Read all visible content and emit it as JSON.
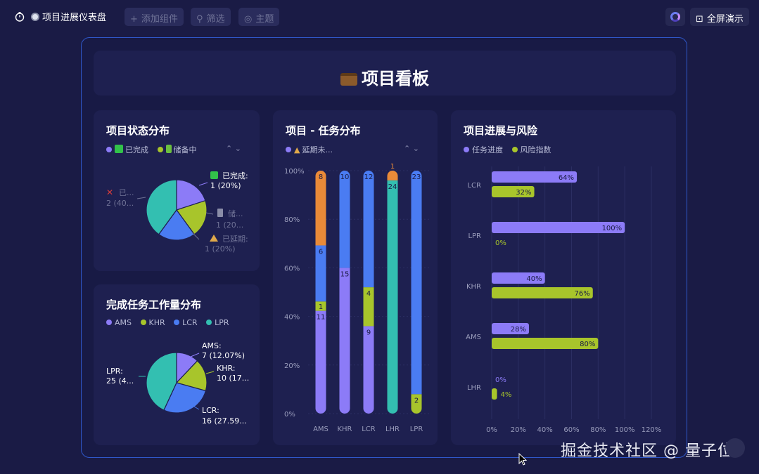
{
  "topbar": {
    "title": "项目进展仪表盘",
    "add_widget": "添加组件",
    "filter": "筛选",
    "theme": "主题",
    "fullscreen": "全屏演示"
  },
  "header": {
    "title": "项目看板"
  },
  "status_card": {
    "title": "项目状态分布",
    "legend": [
      "已完成",
      "储备中"
    ],
    "labels": [
      {
        "name": "已完成:",
        "value": "1 (20%)"
      },
      {
        "name": "储...",
        "value": "1 (20..."
      },
      {
        "name": "已延期:",
        "value": "1 (20%)"
      },
      {
        "name": "已...",
        "value": "2 (40..."
      }
    ]
  },
  "workload_card": {
    "title": "完成任务工作量分布",
    "legend": [
      "AMS",
      "KHR",
      "LCR",
      "LPR"
    ],
    "labels": [
      {
        "name": "AMS:",
        "value": "7 (12.07%)"
      },
      {
        "name": "KHR:",
        "value": "10 (17..."
      },
      {
        "name": "LCR:",
        "value": "16 (27.59..."
      },
      {
        "name": "LPR:",
        "value": "25 (4..."
      }
    ]
  },
  "task_card": {
    "title": "项目 - 任务分布",
    "legend": [
      "延期未..."
    ]
  },
  "progress_card": {
    "title": "项目进展与风险",
    "legend": [
      "任务进度",
      "风险指数"
    ]
  },
  "colors": {
    "purple": "#8c7bf7",
    "green": "#a8c52b",
    "blue": "#4a7cf2",
    "teal": "#33bfb1",
    "orange": "#e98a38"
  },
  "chart_data": [
    {
      "type": "pie",
      "title": "项目状态分布",
      "series": [
        {
          "name": "已完成",
          "value": 1,
          "color": "#8c7bf7"
        },
        {
          "name": "储...",
          "value": 1,
          "color": "#a8c52b"
        },
        {
          "name": "已延期",
          "value": 1,
          "color": "#4a7cf2"
        },
        {
          "name": "已...",
          "value": 2,
          "color": "#33bfb1"
        }
      ]
    },
    {
      "type": "pie",
      "title": "完成任务工作量分布",
      "series": [
        {
          "name": "AMS",
          "value": 7,
          "color": "#8c7bf7"
        },
        {
          "name": "KHR",
          "value": 10,
          "color": "#a8c52b"
        },
        {
          "name": "LCR",
          "value": 16,
          "color": "#4a7cf2"
        },
        {
          "name": "LPR",
          "value": 25,
          "color": "#33bfb1"
        }
      ]
    },
    {
      "type": "bar",
      "title": "项目 - 任务分布",
      "stacked": "percent",
      "categories": [
        "AMS",
        "KHR",
        "LCR",
        "LHR",
        "LPR"
      ],
      "yticks": [
        "0%",
        "20%",
        "40%",
        "60%",
        "80%",
        "100%"
      ],
      "segments": [
        {
          "category": "AMS",
          "values": [
            {
              "value": 11,
              "color": "#8c7bf7",
              "label": "11"
            },
            {
              "value": 1,
              "color": "#a8c52b",
              "label": "1"
            },
            {
              "value": 6,
              "color": "#4a7cf2",
              "label": "6"
            },
            {
              "value": 8,
              "color": "#e98a38",
              "label": "8"
            }
          ]
        },
        {
          "category": "KHR",
          "values": [
            {
              "value": 15,
              "color": "#8c7bf7",
              "label": "15"
            },
            {
              "value": 10,
              "color": "#4a7cf2",
              "label": "10"
            }
          ]
        },
        {
          "category": "LCR",
          "values": [
            {
              "value": 9,
              "color": "#8c7bf7",
              "label": "9"
            },
            {
              "value": 4,
              "color": "#a8c52b",
              "label": "4"
            },
            {
              "value": 12,
              "color": "#4a7cf2",
              "label": "12"
            }
          ]
        },
        {
          "category": "LHR",
          "values": [
            {
              "value": 24,
              "color": "#33bfb1",
              "label": "24"
            },
            {
              "value": 1,
              "color": "#e98a38",
              "label": "1"
            }
          ]
        },
        {
          "category": "LPR",
          "values": [
            {
              "value": 2,
              "color": "#a8c52b",
              "label": "2"
            },
            {
              "value": 23,
              "color": "#4a7cf2",
              "label": "23"
            }
          ]
        }
      ]
    },
    {
      "type": "bar",
      "orientation": "horizontal",
      "title": "项目进展与风险",
      "categories": [
        "LCR",
        "LPR",
        "KHR",
        "AMS",
        "LHR"
      ],
      "xticks": [
        "0%",
        "20%",
        "40%",
        "60%",
        "80%",
        "100%",
        "120%"
      ],
      "xlim": [
        0,
        120
      ],
      "series": [
        {
          "name": "任务进度",
          "color": "#8c7bf7",
          "values": [
            64,
            100,
            40,
            28,
            0
          ]
        },
        {
          "name": "风险指数",
          "color": "#a8c52b",
          "values": [
            32,
            0,
            76,
            80,
            4
          ]
        }
      ]
    }
  ],
  "watermark": "掘金技术社区 @ 量子位"
}
